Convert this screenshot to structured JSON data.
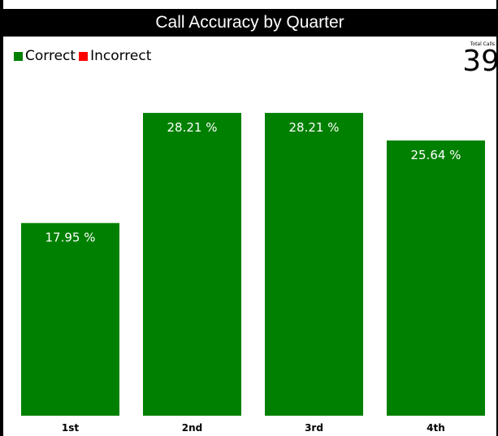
{
  "title": "Call Accuracy by Quarter",
  "legend": [
    {
      "label": "Correct",
      "color": "#008000"
    },
    {
      "label": "Incorrect",
      "color": "#ff0000"
    }
  ],
  "total": {
    "label": "Total Calls",
    "value": "39"
  },
  "chart_data": {
    "type": "bar",
    "title": "Call Accuracy by Quarter",
    "categories": [
      "1st",
      "2nd",
      "3rd",
      "4th"
    ],
    "series": [
      {
        "name": "Correct",
        "color": "#008000",
        "values": [
          17.95,
          28.21,
          28.21,
          25.64
        ]
      }
    ],
    "data_labels": [
      "17.95 %",
      "28.21 %",
      "28.21 %",
      "25.64 %"
    ],
    "xlabel": "",
    "ylabel": "",
    "legend": "top-left",
    "grid": false
  }
}
